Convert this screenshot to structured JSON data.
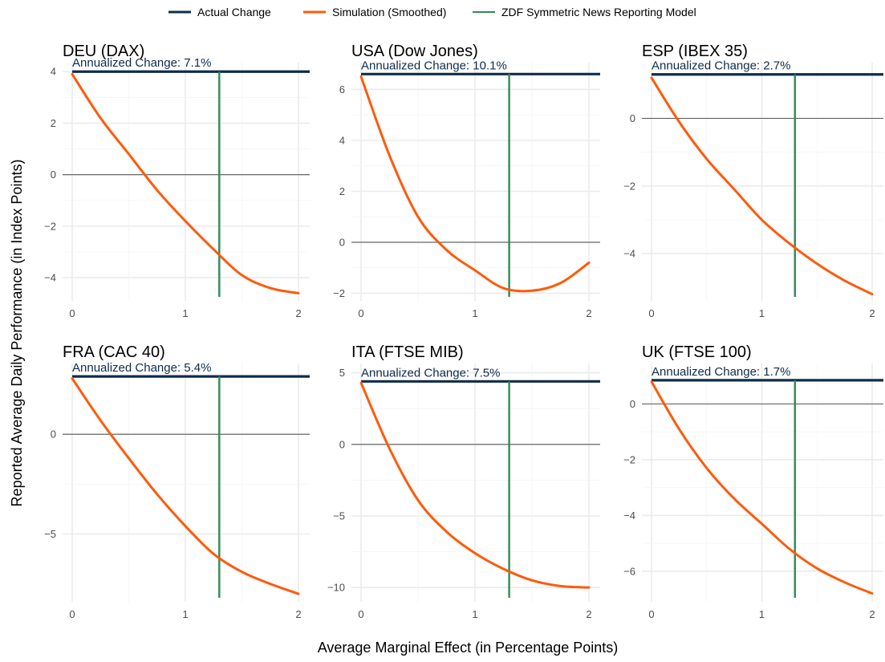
{
  "chart_data": {
    "type": "line",
    "legend_position": "top",
    "xlabel": "Average Marginal Effect (in Percentage Points)",
    "ylabel": "Reported Average Daily Performance (in Index Points)",
    "legend": [
      {
        "key": "actual",
        "label": "Actual Change",
        "color": "#0f2c4a"
      },
      {
        "key": "sim",
        "label": "Simulation (Smoothed)",
        "color": "#ff5a0a"
      },
      {
        "key": "zdf",
        "label": "ZDF Symmetric News Reporting Model",
        "color": "#2e8b57"
      }
    ],
    "panels": [
      {
        "title": "DEU (DAX)",
        "annotation": "Annualized Change: 7.1%",
        "actual_change": 4.0,
        "zdf_x": 1.3,
        "xlim": [
          0,
          2
        ],
        "ylim": [
          -4.9,
          4.35
        ],
        "xticks": [
          0,
          1,
          2
        ],
        "yticks": [
          -4,
          -2,
          0,
          2,
          4
        ],
        "simulation": {
          "x": [
            0,
            0.25,
            0.5,
            0.75,
            1.0,
            1.25,
            1.5,
            1.75,
            2.0
          ],
          "y": [
            3.9,
            2.2,
            0.8,
            -0.6,
            -1.8,
            -2.9,
            -3.9,
            -4.4,
            -4.6
          ]
        }
      },
      {
        "title": "USA (Dow Jones)",
        "annotation": "Annualized Change: 10.1%",
        "actual_change": 6.6,
        "zdf_x": 1.3,
        "xlim": [
          0,
          2
        ],
        "ylim": [
          -2.3,
          7.05
        ],
        "xticks": [
          0,
          1,
          2
        ],
        "yticks": [
          -2,
          0,
          2,
          4,
          6
        ],
        "simulation": {
          "x": [
            0,
            0.25,
            0.5,
            0.75,
            1.0,
            1.25,
            1.5,
            1.75,
            2.0
          ],
          "y": [
            6.5,
            3.4,
            1.0,
            -0.3,
            -1.1,
            -1.8,
            -1.9,
            -1.6,
            -0.8
          ]
        }
      },
      {
        "title": "ESP (IBEX 35)",
        "annotation": "Annualized Change: 2.7%",
        "actual_change": 1.3,
        "zdf_x": 1.3,
        "xlim": [
          0,
          2
        ],
        "ylim": [
          -5.4,
          1.65
        ],
        "xticks": [
          0,
          1,
          2
        ],
        "yticks": [
          -4,
          -2,
          0
        ],
        "simulation": {
          "x": [
            0,
            0.25,
            0.5,
            0.75,
            1.0,
            1.25,
            1.5,
            1.75,
            2.0
          ],
          "y": [
            1.2,
            -0.1,
            -1.2,
            -2.1,
            -3.0,
            -3.7,
            -4.3,
            -4.8,
            -5.2
          ]
        }
      },
      {
        "title": "FRA (CAC 40)",
        "annotation": "Annualized Change: 5.4%",
        "actual_change": 2.9,
        "zdf_x": 1.3,
        "xlim": [
          0,
          2
        ],
        "ylim": [
          -8.4,
          3.55
        ],
        "xticks": [
          0,
          1,
          2
        ],
        "yticks": [
          -5,
          0
        ],
        "simulation": {
          "x": [
            0,
            0.25,
            0.5,
            0.75,
            1.0,
            1.25,
            1.5,
            1.75,
            2.0
          ],
          "y": [
            2.8,
            0.7,
            -1.2,
            -3.0,
            -4.6,
            -6.0,
            -6.9,
            -7.5,
            -8.0
          ]
        }
      },
      {
        "title": "ITA (FTSE MIB)",
        "annotation": "Annualized Change: 7.5%",
        "actual_change": 4.4,
        "zdf_x": 1.3,
        "xlim": [
          0,
          2
        ],
        "ylim": [
          -11.0,
          5.65
        ],
        "xticks": [
          0,
          1,
          2
        ],
        "yticks": [
          -10,
          -5,
          0,
          5
        ],
        "simulation": {
          "x": [
            0,
            0.25,
            0.5,
            0.75,
            1.0,
            1.25,
            1.5,
            1.75,
            2.0
          ],
          "y": [
            4.3,
            -0.3,
            -3.9,
            -6.1,
            -7.6,
            -8.7,
            -9.5,
            -9.9,
            -10.0
          ]
        }
      },
      {
        "title": "UK (FTSE 100)",
        "annotation": "Annualized Change: 1.7%",
        "actual_change": 0.85,
        "zdf_x": 1.3,
        "xlim": [
          0,
          2
        ],
        "ylim": [
          -7.1,
          1.45
        ],
        "xticks": [
          0,
          1,
          2
        ],
        "yticks": [
          -6,
          -4,
          -2,
          0
        ],
        "simulation": {
          "x": [
            0,
            0.25,
            0.5,
            0.75,
            1.0,
            1.25,
            1.5,
            1.75,
            2.0
          ],
          "y": [
            0.8,
            -0.9,
            -2.3,
            -3.4,
            -4.3,
            -5.2,
            -5.9,
            -6.4,
            -6.8
          ]
        }
      }
    ]
  }
}
